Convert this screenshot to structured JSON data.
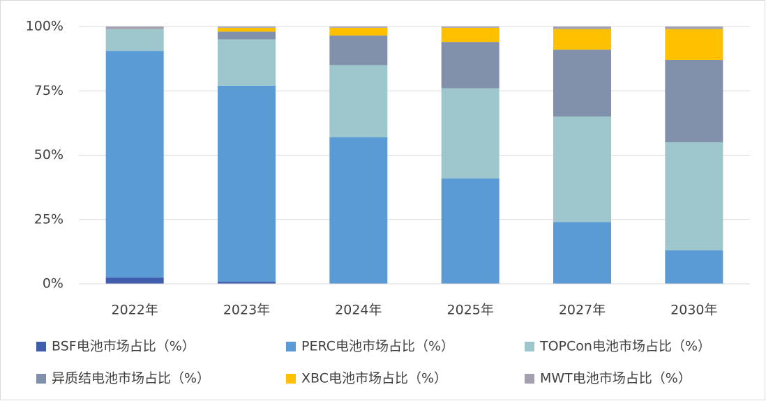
{
  "chart_data": {
    "type": "stacked_bar",
    "categories": [
      "2022年",
      "2023年",
      "2024年",
      "2025年",
      "2027年",
      "2030年"
    ],
    "series": [
      {
        "name": "BSF电池市场占比（%）",
        "color": "#3f5fae",
        "values": [
          2.5,
          0.8,
          0,
          0,
          0,
          0
        ]
      },
      {
        "name": "PERC电池市场占比（%）",
        "color": "#5b9bd5",
        "values": [
          88,
          76.2,
          57,
          41,
          24,
          13
        ]
      },
      {
        "name": "TOPCon电池市场占比（%）",
        "color": "#9ec6cd",
        "values": [
          8.5,
          18,
          28,
          35,
          41,
          42
        ]
      },
      {
        "name": "异质结电池市场占比（%）",
        "color": "#8291ab",
        "values": [
          0,
          3,
          11.5,
          18,
          26,
          32
        ]
      },
      {
        "name": "XBC电池市场占比（%）",
        "color": "#ffc000",
        "values": [
          0,
          1.5,
          3,
          5.5,
          8,
          12
        ]
      },
      {
        "name": "MWT电池市场占比（%）",
        "color": "#a5a0b0",
        "values": [
          1,
          0.5,
          0.5,
          0.5,
          1,
          1
        ]
      }
    ],
    "ylim": [
      0,
      100
    ],
    "yticks": [
      {
        "value": 0,
        "label": "0%"
      },
      {
        "value": 25,
        "label": "25%"
      },
      {
        "value": 50,
        "label": "50%"
      },
      {
        "value": 75,
        "label": "75%"
      },
      {
        "value": 100,
        "label": "100%"
      }
    ],
    "grid": true,
    "legend": "bottom"
  }
}
